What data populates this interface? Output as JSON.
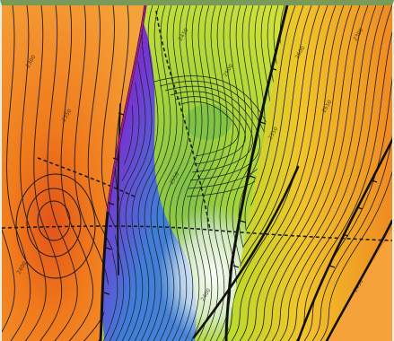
{
  "map": {
    "kind": "structure-contour-map",
    "colors": {
      "frame_top": "#7a9a57",
      "orange": "#f07a1c",
      "orange_light": "#f5a23a",
      "red_core": "#e2541a",
      "yellow_green": "#b9dc2a",
      "green": "#7fc24a",
      "cyan": "#a9dcea",
      "blue": "#3f7ed8",
      "purple": "#7a2fd0",
      "magenta": "#c51fb5",
      "contour": "#1b1b1b"
    },
    "fault_count": 6,
    "has_dashed_section_line": true,
    "contour_labels": [
      "2300",
      "2350",
      "2400",
      "2450",
      "2500",
      "2550",
      "2600",
      "2650"
    ]
  }
}
